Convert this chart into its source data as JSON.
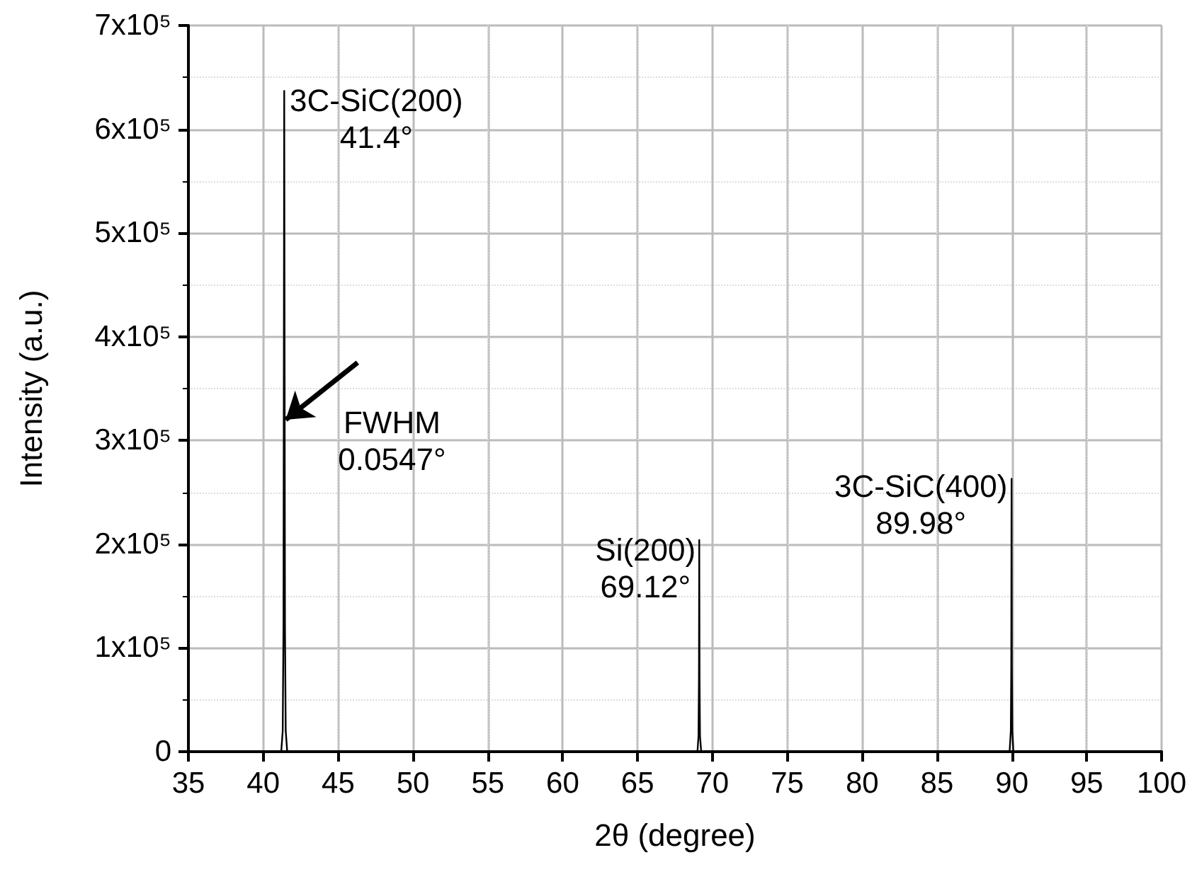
{
  "chart_data": {
    "type": "line",
    "xlabel": "2θ (degree)",
    "ylabel": "Intensity (a.u.)",
    "series": [
      {
        "color": "#000000",
        "x": [
          35,
          41.2,
          41.3,
          41.35,
          41.4,
          41.45,
          41.5,
          41.6,
          69.0,
          69.07,
          69.1,
          69.12,
          69.14,
          69.17,
          69.25,
          89.85,
          89.93,
          89.96,
          89.98,
          90.0,
          90.03,
          90.1,
          100
        ],
        "values": [
          0,
          0,
          20000,
          120000,
          637000,
          120000,
          20000,
          0,
          0,
          15000,
          70000,
          204000,
          70000,
          15000,
          0,
          0,
          20000,
          80000,
          263000,
          80000,
          20000,
          0,
          0
        ]
      }
    ],
    "xlim": [
      35,
      100
    ],
    "xticks": [
      35,
      40,
      45,
      50,
      55,
      60,
      65,
      70,
      75,
      80,
      85,
      90,
      95,
      100
    ],
    "ylim": [
      0,
      700000
    ],
    "yticks": [
      {
        "value": 0,
        "label": "0"
      },
      {
        "value": 100000,
        "label": "1x10⁵"
      },
      {
        "value": 200000,
        "label": "2x10⁵"
      },
      {
        "value": 300000,
        "label": "3x10⁵"
      },
      {
        "value": 400000,
        "label": "4x10⁵"
      },
      {
        "value": 500000,
        "label": "5x10⁵"
      },
      {
        "value": 600000,
        "label": "6x10⁵"
      },
      {
        "value": 700000,
        "label": "7x10⁵"
      }
    ],
    "grid": true,
    "marker": "none",
    "line_style": "solid",
    "annotations": [
      {
        "text": "3C-SiC(200)\n41.4°",
        "x": 41.4,
        "y": 637000
      },
      {
        "text": "FWHM\n0.0547°",
        "x": 41.5,
        "y": 320000
      },
      {
        "text": "Si(200)\n69.12°",
        "x": 69.12,
        "y": 204000
      },
      {
        "text": "3C-SiC(400)\n89.98°",
        "x": 89.98,
        "y": 263000
      }
    ]
  }
}
